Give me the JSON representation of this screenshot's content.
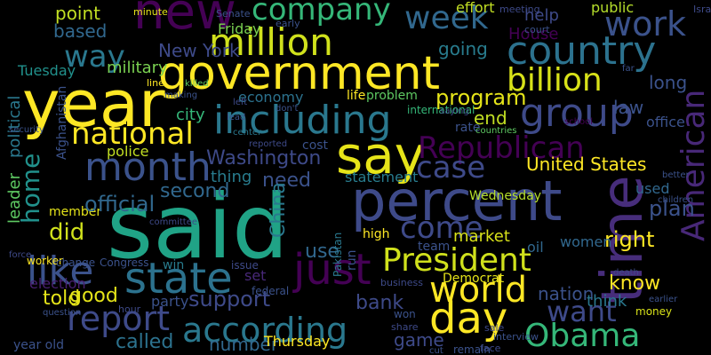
{
  "words": [
    {
      "text": "said",
      "color": "#20a386"
    },
    {
      "text": "year",
      "color": "#fde725"
    },
    {
      "text": "government",
      "color": "#fde725"
    },
    {
      "text": "percent",
      "color": "#3e4a89"
    },
    {
      "text": "new",
      "color": "#440154"
    },
    {
      "text": "million",
      "color": "#d0e11c"
    },
    {
      "text": "say",
      "color": "#e6e419"
    },
    {
      "text": "time",
      "color": "#472d7b"
    },
    {
      "text": "country",
      "color": "#2c728e"
    },
    {
      "text": "company",
      "color": "#35b779"
    },
    {
      "text": "week",
      "color": "#31688e"
    },
    {
      "text": "work",
      "color": "#3b528b"
    },
    {
      "text": "billion",
      "color": "#d8e219"
    },
    {
      "text": "group",
      "color": "#3e4a89"
    },
    {
      "text": "including",
      "color": "#2a788e"
    },
    {
      "text": "national",
      "color": "#fde725"
    },
    {
      "text": "month",
      "color": "#3b528b"
    },
    {
      "text": "Republican",
      "color": "#440154"
    },
    {
      "text": "case",
      "color": "#3e4a89"
    },
    {
      "text": "American",
      "color": "#482878"
    },
    {
      "text": "United States",
      "color": "#fde725"
    },
    {
      "text": "program",
      "color": "#e5e419"
    },
    {
      "text": "end",
      "color": "#c2df23"
    },
    {
      "text": "way",
      "color": "#2a788e"
    },
    {
      "text": "point",
      "color": "#c2df23"
    },
    {
      "text": "based",
      "color": "#31688e"
    },
    {
      "text": "Tuesday",
      "color": "#21918c"
    },
    {
      "text": "military",
      "color": "#7ad151"
    },
    {
      "text": "New York",
      "color": "#3e4a89"
    },
    {
      "text": "political",
      "color": "#2a788e"
    },
    {
      "text": "leader",
      "color": "#5ec962"
    },
    {
      "text": "home",
      "color": "#21918c"
    },
    {
      "text": "like",
      "color": "#3b528b"
    },
    {
      "text": "did",
      "color": "#d0e11c"
    },
    {
      "text": "member",
      "color": "#e5e419"
    },
    {
      "text": "official",
      "color": "#31688e"
    },
    {
      "text": "second",
      "color": "#31688e"
    },
    {
      "text": "Washington",
      "color": "#3e4a89"
    },
    {
      "text": "thing",
      "color": "#287c8e"
    },
    {
      "text": "need",
      "color": "#3b528b"
    },
    {
      "text": "China",
      "color": "#2a788e"
    },
    {
      "text": "state",
      "color": "#2c728e"
    },
    {
      "text": "come",
      "color": "#3e4a89"
    },
    {
      "text": "just",
      "color": "#440154"
    },
    {
      "text": "President",
      "color": "#d0e11c"
    },
    {
      "text": "world",
      "color": "#fde725"
    },
    {
      "text": "market",
      "color": "#d8e219"
    },
    {
      "text": "report",
      "color": "#3e4a89"
    },
    {
      "text": "according",
      "color": "#2a788e"
    },
    {
      "text": "day",
      "color": "#fde725"
    },
    {
      "text": "Obama",
      "color": "#35b779"
    },
    {
      "text": "want",
      "color": "#3e4a89"
    },
    {
      "text": "nation",
      "color": "#3b528b"
    },
    {
      "text": "think",
      "color": "#2a788e"
    },
    {
      "text": "know",
      "color": "#fde725"
    },
    {
      "text": "right",
      "color": "#fde725"
    },
    {
      "text": "plan",
      "color": "#3b528b"
    },
    {
      "text": "used",
      "color": "#31688e"
    },
    {
      "text": "women",
      "color": "#31688e"
    },
    {
      "text": "told",
      "color": "#e5e419"
    },
    {
      "text": "good",
      "color": "#e5e419"
    },
    {
      "text": "support",
      "color": "#3e4a89"
    },
    {
      "text": "called",
      "color": "#2c728e"
    },
    {
      "text": "number",
      "color": "#31688e"
    },
    {
      "text": "Thursday",
      "color": "#fde725"
    },
    {
      "text": "game",
      "color": "#3e4a89"
    },
    {
      "text": "bank",
      "color": "#3e4a89"
    },
    {
      "text": "election",
      "color": "#481f70"
    },
    {
      "text": "year old",
      "color": "#3b528b"
    },
    {
      "text": "city",
      "color": "#35b779"
    },
    {
      "text": "police",
      "color": "#c2df23"
    },
    {
      "text": "economy",
      "color": "#2c728e"
    },
    {
      "text": "House",
      "color": "#440154"
    },
    {
      "text": "help",
      "color": "#3e4a89"
    },
    {
      "text": "effort",
      "color": "#c2df23"
    },
    {
      "text": "going",
      "color": "#287c8e"
    },
    {
      "text": "Friday",
      "color": "#7ad151"
    },
    {
      "text": "law",
      "color": "#3b528b"
    },
    {
      "text": "long",
      "color": "#3b528b"
    },
    {
      "text": "office",
      "color": "#3b528b"
    },
    {
      "text": "public",
      "color": "#b5de2b"
    },
    {
      "text": "life",
      "color": "#fde725"
    },
    {
      "text": "problem",
      "color": "#5ec962"
    },
    {
      "text": "Wednesday",
      "color": "#b5de2b"
    },
    {
      "text": "rate",
      "color": "#3b528b"
    },
    {
      "text": "high",
      "color": "#fde725"
    },
    {
      "text": "team",
      "color": "#3b528b"
    },
    {
      "text": "Democrat",
      "color": "#e5e419"
    },
    {
      "text": "oil",
      "color": "#31688e"
    },
    {
      "text": "money",
      "color": "#d8e219"
    },
    {
      "text": "Congress",
      "color": "#3b528b"
    },
    {
      "text": "win",
      "color": "#287c8e"
    },
    {
      "text": "set",
      "color": "#482878"
    },
    {
      "text": "party",
      "color": "#3b528b"
    },
    {
      "text": "federal",
      "color": "#3b528b"
    },
    {
      "text": "issue",
      "color": "#3e4a89"
    },
    {
      "text": "use",
      "color": "#31688e"
    },
    {
      "text": "cost",
      "color": "#3b528b"
    },
    {
      "text": "statement",
      "color": "#287c8e"
    },
    {
      "text": "run",
      "color": "#3b528b"
    },
    {
      "text": "Pakistan",
      "color": "#2a788e"
    },
    {
      "text": "Afghanistan",
      "color": "#3b528b"
    },
    {
      "text": "minute",
      "color": "#e5e419"
    },
    {
      "text": "Senate",
      "color": "#3b528b"
    },
    {
      "text": "early",
      "color": "#3b528b"
    },
    {
      "text": "meeting",
      "color": "#3e4a89"
    },
    {
      "text": "court",
      "color": "#3b528b"
    },
    {
      "text": "Israel",
      "color": "#3e4a89"
    },
    {
      "text": "far",
      "color": "#3b528b"
    },
    {
      "text": "countries",
      "color": "#5ec962"
    },
    {
      "text": "international",
      "color": "#35b779"
    },
    {
      "text": "saying",
      "color": "#3e4a89"
    },
    {
      "text": "school",
      "color": "#440154"
    },
    {
      "text": "reported",
      "color": "#3e4a89"
    },
    {
      "text": "center",
      "color": "#2a788e"
    },
    {
      "text": "lead",
      "color": "#3b528b"
    },
    {
      "text": "don't",
      "color": "#3b528b"
    },
    {
      "text": "left",
      "color": "#3e4a89"
    },
    {
      "text": "line",
      "color": "#fde725"
    },
    {
      "text": "killed",
      "color": "#5ec962"
    },
    {
      "text": "making",
      "color": "#3b528b"
    },
    {
      "text": "better",
      "color": "#3b528b"
    },
    {
      "text": "children",
      "color": "#3b528b"
    },
    {
      "text": "committee",
      "color": "#3e4a89"
    },
    {
      "text": "business",
      "color": "#3e4a89"
    },
    {
      "text": "worker",
      "color": "#fde725"
    },
    {
      "text": "change",
      "color": "#3b528b"
    },
    {
      "text": "force",
      "color": "#3e4a89"
    },
    {
      "text": "won",
      "color": "#3b528b"
    },
    {
      "text": "share",
      "color": "#3e4a89"
    },
    {
      "text": "remain",
      "color": "#3b528b"
    },
    {
      "text": "face",
      "color": "#3e4a89"
    },
    {
      "text": "interview",
      "color": "#3b528b"
    },
    {
      "text": "sale",
      "color": "#3e4a89"
    },
    {
      "text": "cut",
      "color": "#3b528b"
    },
    {
      "text": "hour",
      "color": "#3e4a89"
    },
    {
      "text": "question",
      "color": "#3b528b"
    },
    {
      "text": "earlier",
      "color": "#3b528b"
    },
    {
      "text": "death",
      "color": "#3e4a89"
    },
    {
      "text": "security",
      "color": "#3b528b"
    }
  ]
}
